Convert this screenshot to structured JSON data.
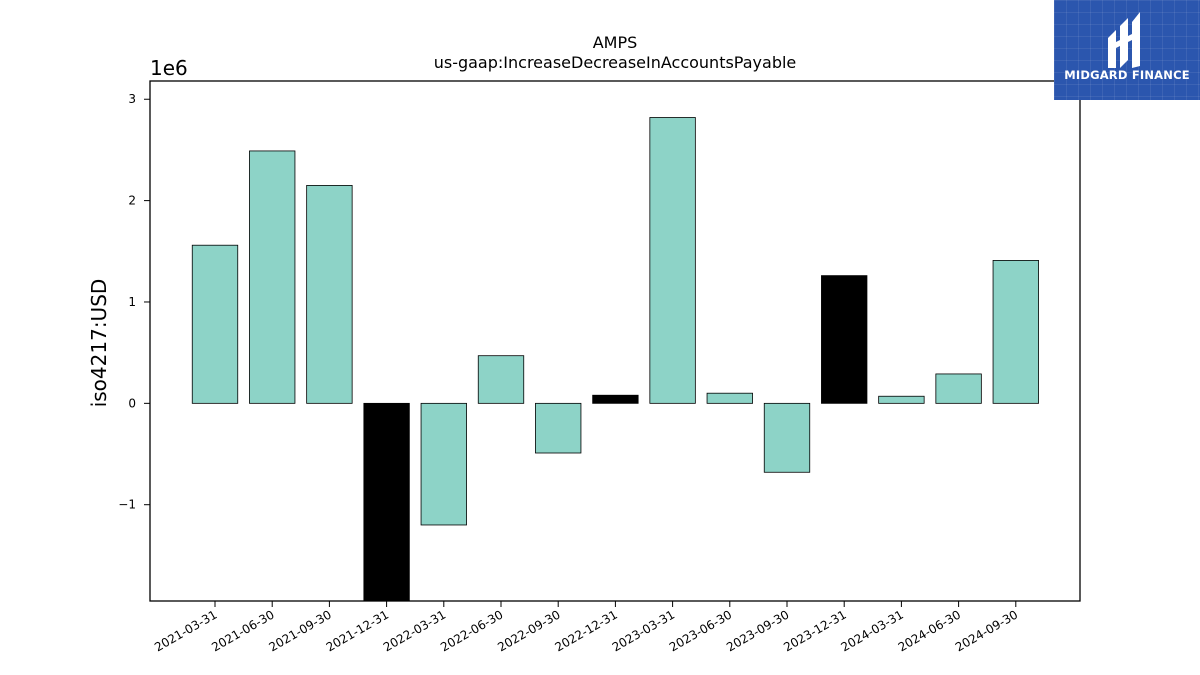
{
  "brand": {
    "name": "MIDGARD FINANCE",
    "bg_color": "#2b56ae"
  },
  "chart_data": {
    "type": "bar",
    "title": "AMPS",
    "subtitle": "us-gaap:IncreaseDecreaseInAccountsPayable",
    "ylabel": "iso4217:USD",
    "xlabel": "",
    "offset_label": "1e6",
    "ylim": [
      -1.95,
      3.18
    ],
    "yticks": [
      -1,
      0,
      1,
      2,
      3
    ],
    "ytick_labels": [
      "−1",
      "0",
      "1",
      "2",
      "3"
    ],
    "grid": false,
    "units_scale": 1000000,
    "categories": [
      "2021-03-31",
      "2021-06-30",
      "2021-09-30",
      "2021-12-31",
      "2022-03-31",
      "2022-06-30",
      "2022-09-30",
      "2022-12-31",
      "2023-03-31",
      "2023-06-30",
      "2023-09-30",
      "2023-12-31",
      "2024-03-31",
      "2024-06-30",
      "2024-09-30"
    ],
    "values": [
      1.56,
      2.49,
      2.15,
      -1.95,
      -1.2,
      0.47,
      -0.49,
      0.08,
      2.82,
      0.1,
      -0.68,
      1.26,
      0.07,
      0.29,
      1.41
    ],
    "highlighted": [
      false,
      false,
      false,
      true,
      false,
      false,
      false,
      true,
      false,
      false,
      false,
      true,
      false,
      false,
      false
    ],
    "colors": {
      "default": "#8dd3c7",
      "highlight": "#000000",
      "edge": "#000000"
    }
  }
}
